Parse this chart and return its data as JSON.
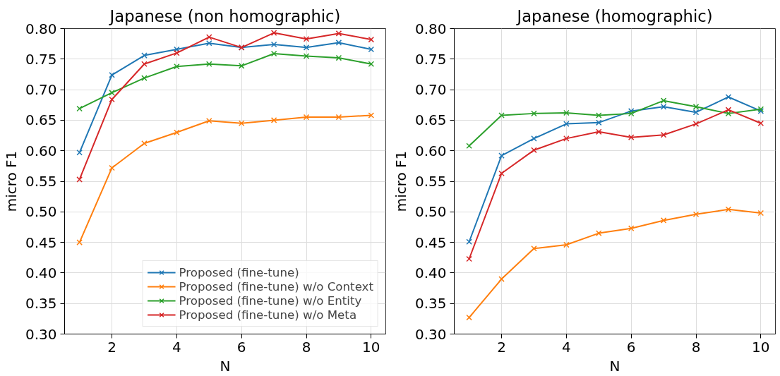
{
  "chart_data": [
    {
      "type": "line",
      "title": "Japanese (non homographic)",
      "xlabel": "N",
      "ylabel": "micro F1",
      "x": [
        1,
        2,
        3,
        4,
        5,
        6,
        7,
        8,
        9,
        10
      ],
      "xlim": [
        0.54,
        10.45
      ],
      "xticks": [
        2,
        4,
        6,
        8,
        10
      ],
      "ylim": [
        0.3,
        0.8
      ],
      "yticks": [
        {
          "value": 0.3,
          "label": "0.30"
        },
        0.35,
        {
          "value": 0.4,
          "label": "0.40"
        },
        0.45,
        {
          "value": 0.5,
          "label": "0.50"
        },
        0.55,
        {
          "value": 0.6,
          "label": "0.60"
        },
        0.65,
        {
          "value": 0.7,
          "label": "0.70"
        },
        0.75,
        {
          "value": 0.8,
          "label": "0.80"
        }
      ],
      "grid": true,
      "legend": "bottom right",
      "marker": "cross",
      "line_style": "solid",
      "series": [
        {
          "name": "Proposed (fine-tune)",
          "color": "#1f77b4",
          "values": [
            0.597,
            0.724,
            0.756,
            0.766,
            0.776,
            0.769,
            0.774,
            0.769,
            0.777,
            0.766
          ]
        },
        {
          "name": "Proposed (fine-tune) w/o Context",
          "color": "#ff7f0e",
          "values": [
            0.45,
            0.572,
            0.612,
            0.63,
            0.649,
            0.645,
            0.65,
            0.655,
            0.655,
            0.658
          ]
        },
        {
          "name": "Proposed (fine-tune) w/o Entity",
          "color": "#2ca02c",
          "values": [
            0.669,
            0.695,
            0.719,
            0.738,
            0.742,
            0.739,
            0.759,
            0.755,
            0.752,
            0.742
          ]
        },
        {
          "name": "Proposed (fine-tune) w/o Meta",
          "color": "#d62728",
          "values": [
            0.553,
            0.684,
            0.742,
            0.76,
            0.786,
            0.769,
            0.793,
            0.783,
            0.792,
            0.782
          ]
        }
      ]
    },
    {
      "type": "line",
      "title": "Japanese (homographic)",
      "xlabel": "N",
      "ylabel": "micro F1",
      "x": [
        1,
        2,
        3,
        4,
        5,
        6,
        7,
        8,
        9,
        10
      ],
      "xlim": [
        0.54,
        10.45
      ],
      "xticks": [
        2,
        4,
        6,
        8,
        10
      ],
      "ylim": [
        0.3,
        0.8
      ],
      "yticks": [
        {
          "value": 0.3,
          "label": "0.30"
        },
        0.35,
        {
          "value": 0.4,
          "label": "0.40"
        },
        0.45,
        {
          "value": 0.5,
          "label": "0.50"
        },
        0.55,
        {
          "value": 0.6,
          "label": "0.60"
        },
        0.65,
        {
          "value": 0.7,
          "label": "0.70"
        },
        0.75,
        {
          "value": 0.8,
          "label": "0.80"
        }
      ],
      "grid": true,
      "marker": "cross",
      "line_style": "solid",
      "series": [
        {
          "color": "#1f77b4",
          "values": [
            0.451,
            0.592,
            0.62,
            0.644,
            0.646,
            0.665,
            0.672,
            0.663,
            0.688,
            0.665
          ]
        },
        {
          "color": "#ff7f0e",
          "values": [
            0.327,
            0.39,
            0.44,
            0.446,
            0.465,
            0.473,
            0.486,
            0.496,
            0.504,
            0.498
          ]
        },
        {
          "color": "#2ca02c",
          "values": [
            0.608,
            0.658,
            0.661,
            0.662,
            0.658,
            0.661,
            0.682,
            0.672,
            0.661,
            0.668
          ]
        },
        {
          "color": "#d62728",
          "values": [
            0.423,
            0.563,
            0.601,
            0.62,
            0.631,
            0.622,
            0.626,
            0.644,
            0.667,
            0.645
          ]
        }
      ]
    }
  ]
}
